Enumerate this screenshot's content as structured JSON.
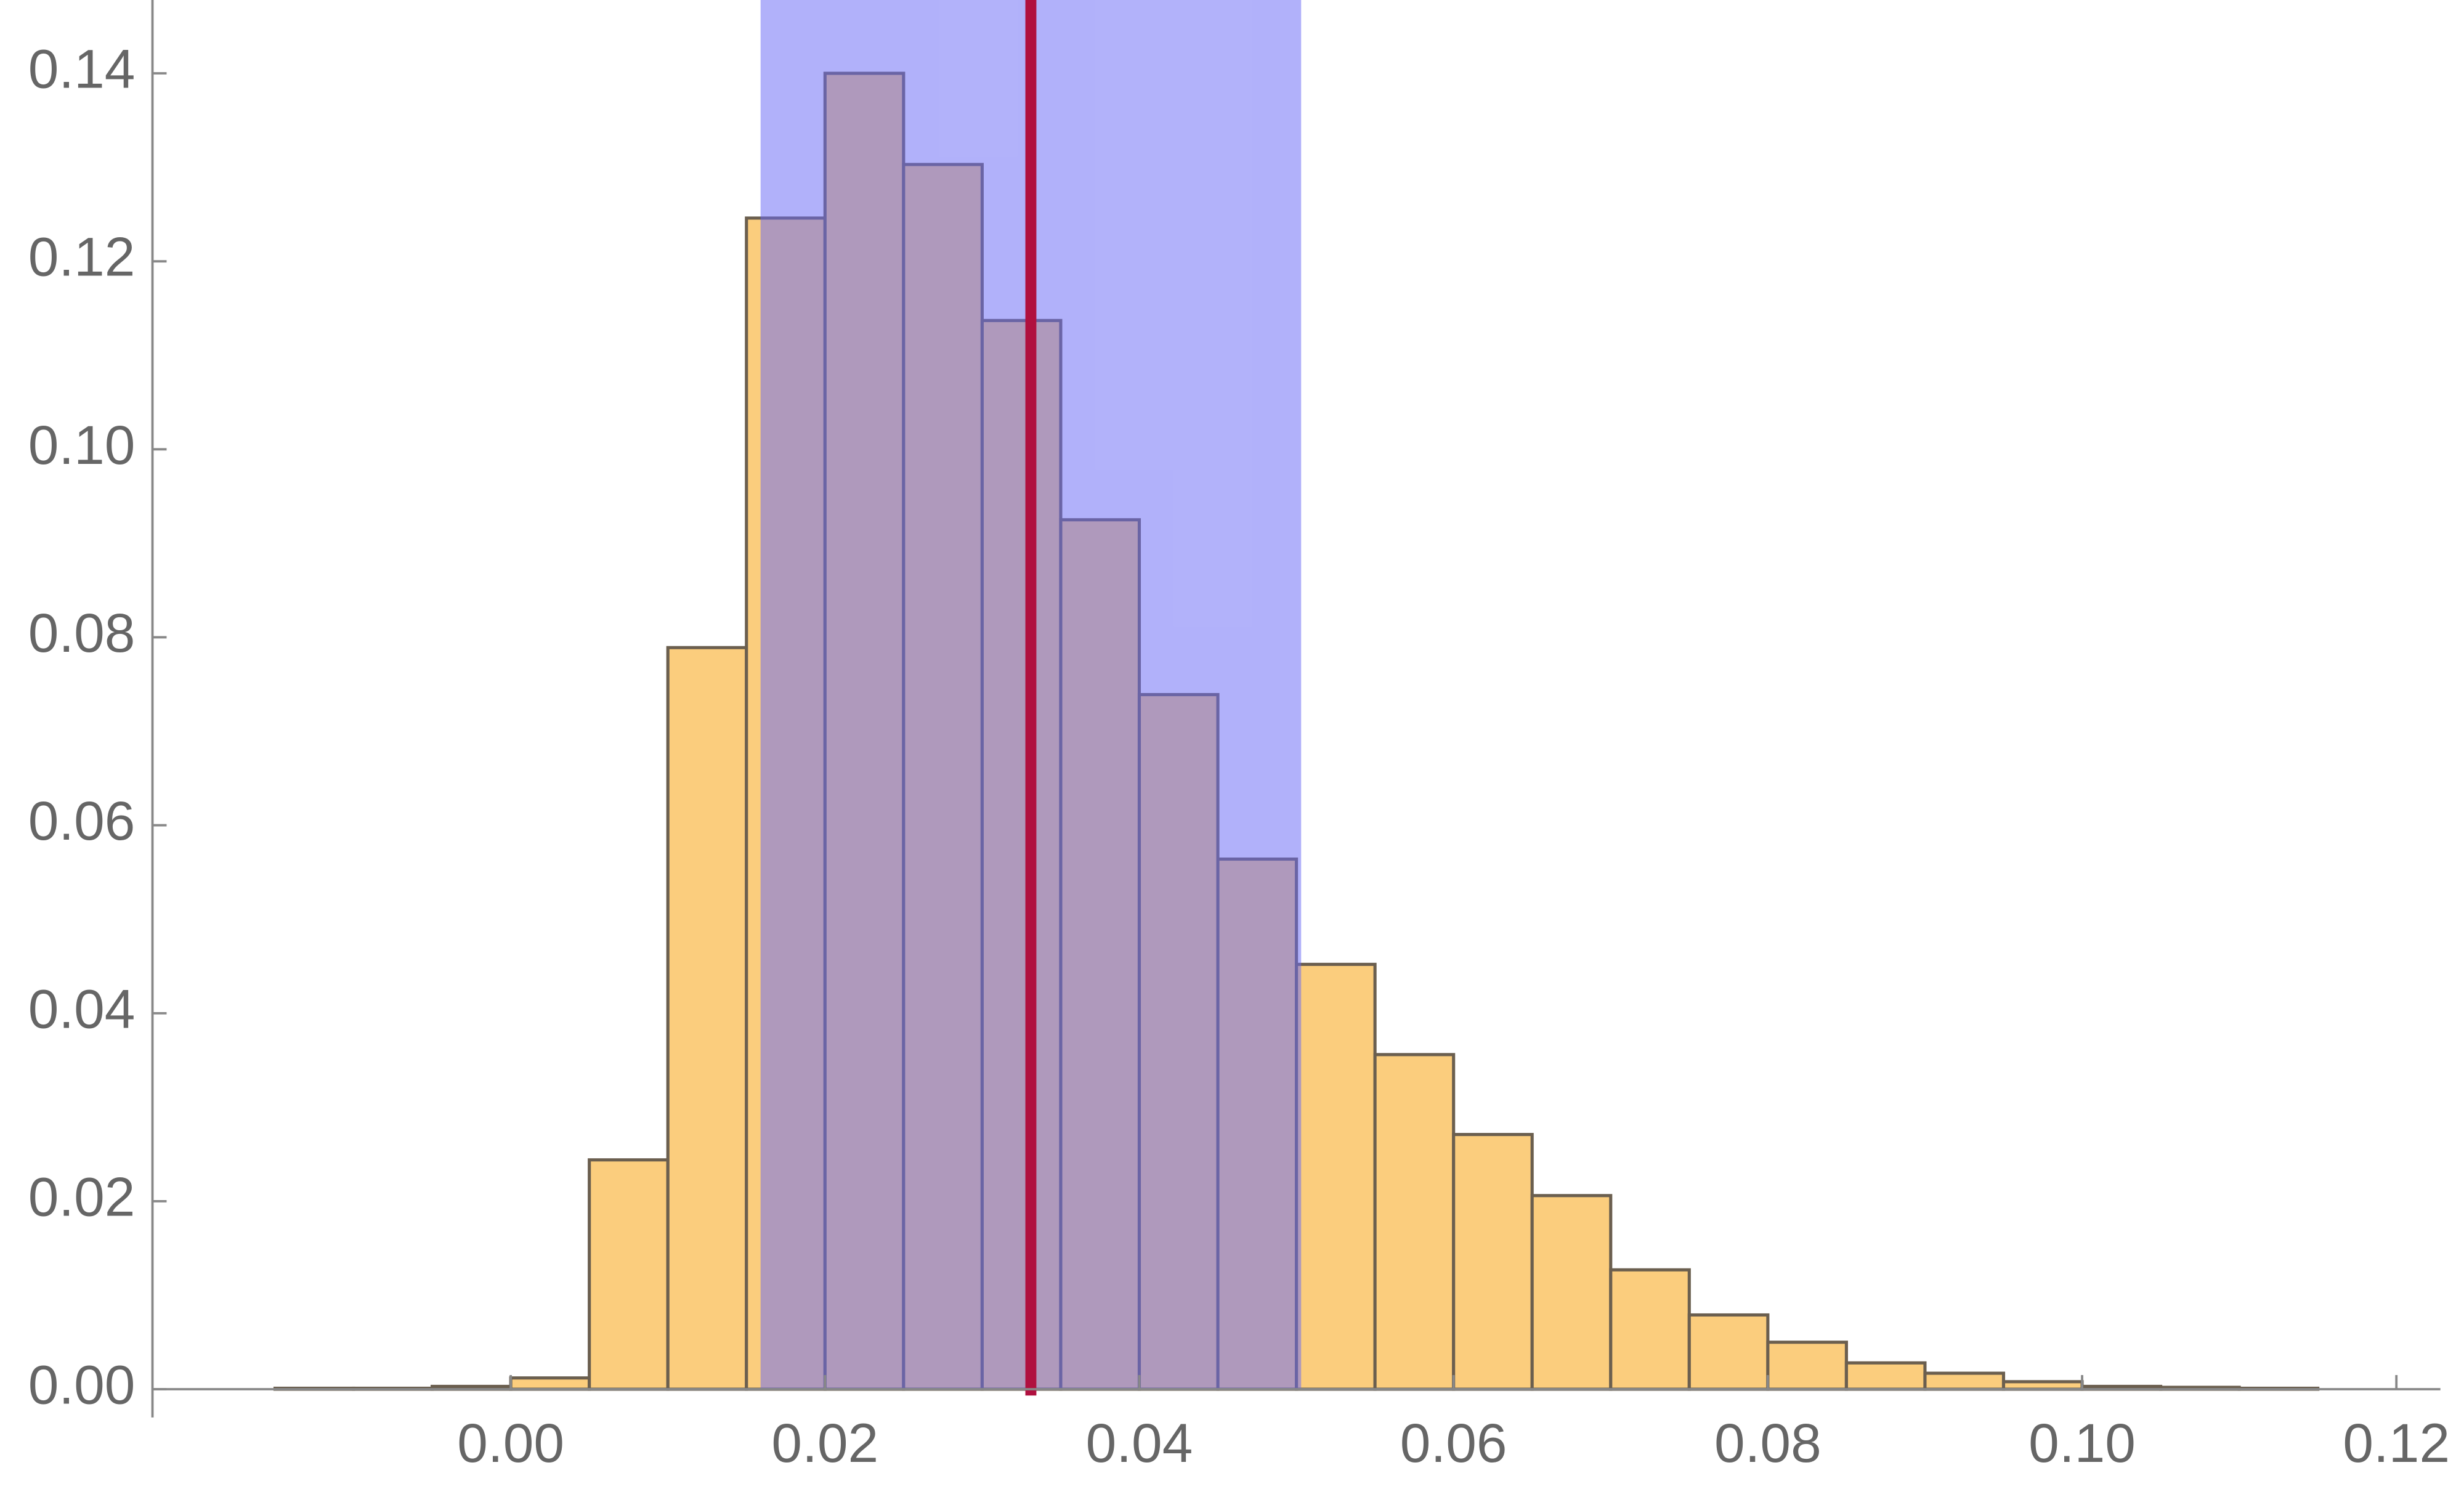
{
  "chart_data": {
    "type": "histogram",
    "bins": [
      -0.015,
      -0.01,
      -0.005,
      0,
      0.005,
      0.01,
      0.015,
      0.02,
      0.025,
      0.03,
      0.035,
      0.04,
      0.045,
      0.05,
      0.055,
      0.06,
      0.065,
      0.07,
      0.075,
      0.08,
      0.085,
      0.09,
      0.095,
      0.1,
      0.105,
      0.11,
      0.115
    ],
    "values": [
      0.0001,
      0.0001,
      0.0003,
      0.0012,
      0.0244,
      0.0789,
      0.1246,
      0.14,
      0.1303,
      0.1137,
      0.0925,
      0.0739,
      0.0564,
      0.0452,
      0.0356,
      0.0271,
      0.0206,
      0.0127,
      0.0079,
      0.005,
      0.0028,
      0.0017,
      0.0008,
      0.0003,
      0.0002,
      0.0001
    ],
    "color": "#fbcd7d",
    "interval": [
      0.0159,
      0.0503
    ],
    "interval_color": "#6a6af5",
    "marker": 0.0331,
    "marker_color": "#b0103f",
    "xlim": [
      -0.0228,
      0.1228
    ],
    "ylim": [
      0,
      0.1478
    ],
    "xticks": [
      {
        "value": 0,
        "label": "0.00"
      },
      {
        "value": 0.02,
        "label": "0.02"
      },
      {
        "value": 0.04,
        "label": "0.04"
      },
      {
        "value": 0.06,
        "label": "0.06"
      },
      {
        "value": 0.08,
        "label": "0.08"
      },
      {
        "value": 0.1,
        "label": "0.10"
      },
      {
        "value": 0.12,
        "label": "0.12"
      }
    ],
    "yticks": [
      {
        "value": 0,
        "label": "0.00"
      },
      {
        "value": 0.02,
        "label": "0.02"
      },
      {
        "value": 0.04,
        "label": "0.04"
      },
      {
        "value": 0.06,
        "label": "0.06"
      },
      {
        "value": 0.08,
        "label": "0.08"
      },
      {
        "value": 0.1,
        "label": "0.10"
      },
      {
        "value": 0.12,
        "label": "0.12"
      },
      {
        "value": 0.14,
        "label": "0.14"
      }
    ]
  }
}
